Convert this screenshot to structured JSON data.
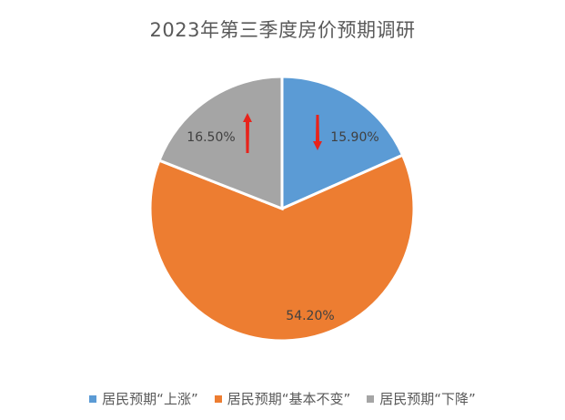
{
  "chart_data": {
    "type": "pie",
    "title": "2023年第三季度房价预期调研",
    "categories": [
      "居民预期“上涨”",
      "居民预期“基本不变”",
      "居民预期“下降”"
    ],
    "values": [
      15.9,
      54.2,
      16.5
    ],
    "labels": [
      "15.90%",
      "54.20%",
      "16.50%"
    ],
    "colors": [
      "#5B9BD5",
      "#ED7D31",
      "#A5A5A5"
    ],
    "start_angle": "12 o'clock, clockwise",
    "legend_position": "bottom",
    "annotations": [
      {
        "type": "arrow",
        "direction": "down",
        "color": "#E8231B",
        "slice": "居民预期“上涨”"
      },
      {
        "type": "arrow",
        "direction": "up",
        "color": "#E8231B",
        "slice": "居民预期“下降”"
      }
    ]
  },
  "legend": {
    "items": [
      {
        "label": "居民预期“上涨”",
        "color": "#5B9BD5"
      },
      {
        "label": "居民预期“基本不变”",
        "color": "#ED7D31"
      },
      {
        "label": "居民预期“下降”",
        "color": "#A5A5A5"
      }
    ]
  }
}
